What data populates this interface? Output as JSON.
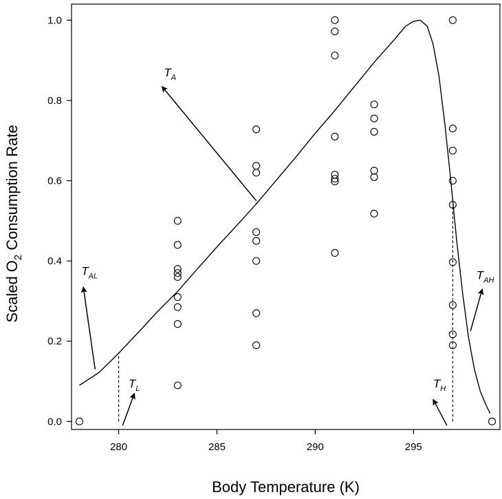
{
  "chart_data": {
    "type": "scatter",
    "title": "",
    "xlabel": "Body Temperature (K)",
    "ylabel": {
      "pre": "Scaled O",
      "sub": "2",
      "post": " Consumption Rate"
    },
    "xlim": [
      277.6,
      299.4
    ],
    "ylim": [
      -0.02,
      1.04
    ],
    "xticks": [
      280,
      285,
      290,
      295
    ],
    "yticks": [
      0.0,
      0.2,
      0.4,
      0.6,
      0.8,
      1.0
    ],
    "ytick_labels": [
      "0.0",
      "0.2",
      "0.4",
      "0.6",
      "0.8",
      "1.0"
    ],
    "grid": false,
    "legend": "none",
    "series": [
      {
        "type": "scatter",
        "marker": "open-circle",
        "points": [
          [
            278,
            0.0
          ],
          [
            283,
            0.5
          ],
          [
            283,
            0.44
          ],
          [
            283,
            0.38
          ],
          [
            283,
            0.37
          ],
          [
            283,
            0.36
          ],
          [
            283,
            0.31
          ],
          [
            283,
            0.285
          ],
          [
            283,
            0.243
          ],
          [
            283,
            0.09
          ],
          [
            287,
            0.728
          ],
          [
            287,
            0.637
          ],
          [
            287,
            0.62
          ],
          [
            287,
            0.472
          ],
          [
            287,
            0.45
          ],
          [
            287,
            0.4
          ],
          [
            287,
            0.27
          ],
          [
            287,
            0.19
          ],
          [
            291,
            1.0
          ],
          [
            291,
            0.972
          ],
          [
            291,
            0.912
          ],
          [
            291,
            0.71
          ],
          [
            291,
            0.615
          ],
          [
            291,
            0.605
          ],
          [
            291,
            0.598
          ],
          [
            291,
            0.42
          ],
          [
            293,
            0.79
          ],
          [
            293,
            0.755
          ],
          [
            293,
            0.722
          ],
          [
            293,
            0.625
          ],
          [
            293,
            0.609
          ],
          [
            293,
            0.518
          ],
          [
            297,
            1.0
          ],
          [
            297,
            0.73
          ],
          [
            297,
            0.675
          ],
          [
            297,
            0.6
          ],
          [
            297,
            0.54
          ],
          [
            297,
            0.397
          ],
          [
            297,
            0.29
          ],
          [
            297,
            0.217
          ],
          [
            297,
            0.19
          ],
          [
            299,
            0.0
          ]
        ]
      },
      {
        "type": "line",
        "points": [
          [
            278,
            0.09
          ],
          [
            279,
            0.122
          ],
          [
            280,
            0.17
          ],
          [
            281,
            0.222
          ],
          [
            282,
            0.275
          ],
          [
            283,
            0.324
          ],
          [
            284,
            0.38
          ],
          [
            285,
            0.435
          ],
          [
            286,
            0.488
          ],
          [
            287,
            0.542
          ],
          [
            288,
            0.6
          ],
          [
            289,
            0.658
          ],
          [
            290,
            0.718
          ],
          [
            291,
            0.775
          ],
          [
            292,
            0.835
          ],
          [
            293,
            0.895
          ],
          [
            294,
            0.95
          ],
          [
            294.6,
            0.985
          ],
          [
            295,
            0.997
          ],
          [
            295.35,
            1.0
          ],
          [
            295.7,
            0.985
          ],
          [
            296.0,
            0.94
          ],
          [
            296.3,
            0.86
          ],
          [
            296.6,
            0.74
          ],
          [
            296.9,
            0.6
          ],
          [
            297.2,
            0.45
          ],
          [
            297.5,
            0.32
          ],
          [
            297.8,
            0.21
          ],
          [
            298.1,
            0.13
          ],
          [
            298.4,
            0.075
          ],
          [
            298.7,
            0.04
          ],
          [
            298.9,
            0.02
          ]
        ]
      }
    ],
    "vlines": [
      {
        "x": 280,
        "y0": 0.0,
        "y1": 0.17,
        "style": "dashed"
      },
      {
        "x": 297,
        "y0": 0.0,
        "y1": 0.54,
        "style": "dashed"
      }
    ],
    "annotations": [
      {
        "main": "T",
        "sub": "A",
        "label_at": [
          282.3,
          0.86
        ],
        "arrow_from": [
          287.0,
          0.55
        ],
        "arrow_to": [
          282.2,
          0.835
        ]
      },
      {
        "main": "T",
        "sub": "AL",
        "label_at": [
          278.1,
          0.365
        ],
        "arrow_from": [
          278.8,
          0.13
        ],
        "arrow_to": [
          278.2,
          0.335
        ]
      },
      {
        "main": "T",
        "sub": "L",
        "label_at": [
          280.5,
          0.085
        ],
        "arrow_from": [
          280.2,
          -0.01
        ],
        "arrow_to": [
          280.8,
          0.07
        ]
      },
      {
        "main": "T",
        "sub": "H",
        "label_at": [
          296.0,
          0.085
        ],
        "arrow_from": [
          296.7,
          -0.01
        ],
        "arrow_to": [
          296.0,
          0.055
        ]
      },
      {
        "main": "T",
        "sub": "AH",
        "label_at": [
          298.2,
          0.355
        ],
        "arrow_from": [
          297.9,
          0.225
        ],
        "arrow_to": [
          298.5,
          0.33
        ]
      }
    ]
  }
}
